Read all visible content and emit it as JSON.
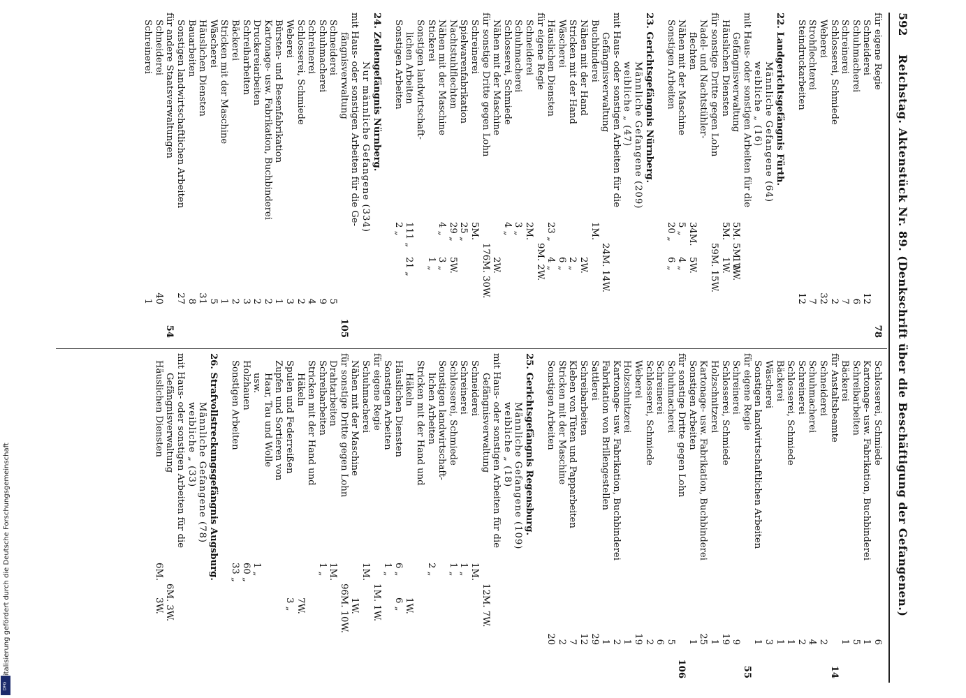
{
  "header": {
    "page_number": "592",
    "title": "Reichstag.   Aktenstück Nr. 89.   (Denkschrift über die Beschäftigung der Gefangenen.)"
  },
  "footer_note": "Digitalisierung gefördert durch die Deutsche Forschungsgemeinschaft",
  "left_column": [
    {
      "text": "für eigene Regie",
      "indent": 0,
      "n": "",
      "s": "78"
    },
    {
      "text": "Schneiderei",
      "indent": 1,
      "n": "12",
      "s": ""
    },
    {
      "text": "Schuhmacherei",
      "indent": 1,
      "n": "6",
      "s": ""
    },
    {
      "text": "Schreinerei",
      "indent": 1,
      "n": "7",
      "s": ""
    },
    {
      "text": "Schlosserei, Schmiede",
      "indent": 1,
      "n": "2",
      "s": ""
    },
    {
      "text": "Weberei",
      "indent": 1,
      "n": "32",
      "s": ""
    },
    {
      "text": "Strohflechterei",
      "indent": 1,
      "n": "7",
      "s": ""
    },
    {
      "text": "Steindruckarbeiten",
      "indent": 1,
      "n": "12",
      "s": ""
    },
    {
      "text": "",
      "indent": 0,
      "n": "",
      "s": ""
    },
    {
      "text": "22. Landgerichtsgefängnis Fürth.",
      "indent": 0,
      "sec": true
    },
    {
      "text": "Männliche Gefangene (64)",
      "indent": 3,
      "n": "",
      "s": ""
    },
    {
      "text": "weibliche     „     (16)",
      "indent": 3,
      "n": "",
      "s": ""
    },
    {
      "text": "mit Haus- oder sonstigen Arbeiten für die",
      "indent": 0,
      "n": "",
      "s": ""
    },
    {
      "text": "Gefängnisverwaltung",
      "indent": 2,
      "a": "5M.",
      "b": "1W.",
      "fm": "5M. 1W."
    },
    {
      "text": "Häuslichen Diensten",
      "indent": 1,
      "a": "5M.",
      "b": "1W.",
      "fm": ""
    },
    {
      "text": "für sonstige Dritte gegen Lohn",
      "indent": 0,
      "fm": "59M. 15W."
    },
    {
      "text": "Nadel- und Nachtstühler-",
      "indent": 1
    },
    {
      "text": "flechten",
      "indent": 2,
      "a": "34M.",
      "b": "5W."
    },
    {
      "text": "Nähen mit der Maschine",
      "indent": 1,
      "a": "5 „",
      "b": "4 „"
    },
    {
      "text": "Sonstigen Arbeiten",
      "indent": 1,
      "a": "20 „",
      "b": "6 „"
    },
    {
      "text": "",
      "indent": 0
    },
    {
      "text": "23. Gerichtsgefängnis Nürnberg.",
      "indent": 0,
      "sec": true
    },
    {
      "text": "Männliche Gefangene (209)",
      "indent": 3
    },
    {
      "text": "weibliche     „     (47)",
      "indent": 3
    },
    {
      "text": "mit Haus- oder sonstigen Arbeiten für die",
      "indent": 0
    },
    {
      "text": "Gefängnisverwaltung",
      "indent": 2,
      "fm": "24M. 14W."
    },
    {
      "text": "Buchbinderei",
      "indent": 1,
      "a": "1M.",
      "b": ""
    },
    {
      "text": "Nähen mit der Hand",
      "indent": 1,
      "a": "",
      "b": "2W."
    },
    {
      "text": "Stricken mit der Hand",
      "indent": 1,
      "a": "",
      "b": "2 „"
    },
    {
      "text": "Wäscherei",
      "indent": 1,
      "a": "",
      "b": "6 „"
    },
    {
      "text": "Häuslichen Diensten",
      "indent": 1,
      "a": "23 „",
      "b": "4 „"
    },
    {
      "text": "für eigene Regie",
      "indent": 0,
      "fm": "9M. 2W."
    },
    {
      "text": "Schneiderei",
      "indent": 1,
      "a": "2M.",
      "b": ""
    },
    {
      "text": "Schuhmacherei",
      "indent": 1,
      "a": "3 „",
      "b": ""
    },
    {
      "text": "Schlosserei, Schmiede",
      "indent": 1,
      "a": "4 „",
      "b": ""
    },
    {
      "text": "Nähen mit der Maschine",
      "indent": 1,
      "a": "",
      "b": "2W."
    },
    {
      "text": "für sonstige Dritte gegen Lohn",
      "indent": 0,
      "fm": "176M. 30W."
    },
    {
      "text": "Schreinerei",
      "indent": 1,
      "a": "5M.",
      "b": ""
    },
    {
      "text": "Spielwarenfabrikation",
      "indent": 1,
      "a": "25 „",
      "b": ""
    },
    {
      "text": "Nachtstuhlflechten",
      "indent": 1,
      "a": "29 „",
      "b": "5W."
    },
    {
      "text": "Nähen mit der Maschine",
      "indent": 1,
      "a": "4 „",
      "b": "3 „"
    },
    {
      "text": "Stickerei",
      "indent": 1,
      "a": "",
      "b": "1 „"
    },
    {
      "text": "Sonstigen landwirtschaft-",
      "indent": 1
    },
    {
      "text": "lichen Arbeiten",
      "indent": 2,
      "a": "111 „",
      "b": "21 „"
    },
    {
      "text": "Sonstigen Arbeiten",
      "indent": 1,
      "a": "2 „",
      "b": ""
    },
    {
      "text": "",
      "indent": 0
    },
    {
      "text": "24. Zellengefängnis Nürnberg.",
      "indent": 0,
      "sec": true
    },
    {
      "text": "Nur männliche Gefangene (334)",
      "indent": 3
    },
    {
      "text": "mit Haus- oder sonstigen Arbeiten für die Ge-",
      "indent": 0
    },
    {
      "text": "fängnisverwaltung",
      "indent": 2,
      "n": "",
      "s": "105"
    },
    {
      "text": "Schneiderei",
      "indent": 1,
      "n": "5"
    },
    {
      "text": "Schuhmacherei",
      "indent": 1,
      "n": "9"
    },
    {
      "text": "Schreinerei",
      "indent": 1,
      "n": "4"
    },
    {
      "text": "Schlosserei, Schmiede",
      "indent": 1,
      "n": "2"
    },
    {
      "text": "Weberei",
      "indent": 1,
      "n": "3"
    },
    {
      "text": "Bürsten- und Besenfabrikation",
      "indent": 1,
      "n": "1"
    },
    {
      "text": "Kartonage- usw. Fabrikation, Buchbinderei",
      "indent": 1,
      "n": "2"
    },
    {
      "text": "Druckereiarbeiten",
      "indent": 1,
      "n": "2"
    },
    {
      "text": "Schreibarbeiten",
      "indent": 1,
      "n": "3"
    },
    {
      "text": "Bäckerei",
      "indent": 1,
      "n": "2"
    },
    {
      "text": "Stricken mit der Maschine",
      "indent": 1,
      "n": "1"
    },
    {
      "text": "Wäscherei",
      "indent": 1,
      "n": "5"
    },
    {
      "text": "Häuslichen Diensten",
      "indent": 1,
      "n": "31"
    },
    {
      "text": "Bauarbeiten",
      "indent": 1,
      "n": "8"
    },
    {
      "text": "Sonstigen landwirtschaftlichen Arbeiten",
      "indent": 1,
      "n": "27"
    },
    {
      "text": "für andere Staatsverwaltungen",
      "indent": 0,
      "n": "",
      "s": "54"
    },
    {
      "text": "Schneiderei",
      "indent": 1,
      "n": "40"
    },
    {
      "text": "Schreinerei",
      "indent": 1,
      "n": "1"
    }
  ],
  "right_column": [
    {
      "text": "Schlosserei, Schmiede",
      "indent": 1,
      "n": "6"
    },
    {
      "text": "Kartonage- usw. Fabrikation, Buchbinderei",
      "indent": 1,
      "n": "1"
    },
    {
      "text": "Schreibarbeiten",
      "indent": 1,
      "n": "5"
    },
    {
      "text": "Bäckerei",
      "indent": 1,
      "n": "1"
    },
    {
      "text": "für Anstaltsbeamte",
      "indent": 0,
      "n": "",
      "s": "14"
    },
    {
      "text": "Schneiderei",
      "indent": 1,
      "n": "2"
    },
    {
      "text": "Schuhmacherei",
      "indent": 1,
      "n": "4"
    },
    {
      "text": "Schreinerei",
      "indent": 1,
      "n": "2"
    },
    {
      "text": "Schlosserei, Schmiede",
      "indent": 1,
      "n": "1"
    },
    {
      "text": "Bäckerei",
      "indent": 1,
      "n": "1"
    },
    {
      "text": "Wäscherei",
      "indent": 1,
      "n": "3"
    },
    {
      "text": "Sonstigen landwirtschaftlichen Arbeiten",
      "indent": 1,
      "n": "1"
    },
    {
      "text": "für eigene Regie",
      "indent": 0,
      "n": "",
      "s": "55"
    },
    {
      "text": "Schreinerei",
      "indent": 1,
      "n": "9"
    },
    {
      "text": "Schlosserei, Schmiede",
      "indent": 1,
      "n": "19"
    },
    {
      "text": "Holzschnitzerei",
      "indent": 1,
      "n": "1"
    },
    {
      "text": "Kartonage- usw. Fabrikation, Buchbinderei",
      "indent": 1,
      "n": "25"
    },
    {
      "text": "Sonstigen Arbeiten",
      "indent": 1,
      "n": "1"
    },
    {
      "text": "für sonstige Dritte gegen Lohn",
      "indent": 0,
      "n": "",
      "s": "106"
    },
    {
      "text": "Schuhmacherei",
      "indent": 1,
      "n": "5"
    },
    {
      "text": "Schreinerei",
      "indent": 1,
      "n": "6"
    },
    {
      "text": "Schlosserei, Schmiede",
      "indent": 1,
      "n": "2"
    },
    {
      "text": "Weberei",
      "indent": 1,
      "n": "19"
    },
    {
      "text": "Holzschnitzerei",
      "indent": 1,
      "n": "1"
    },
    {
      "text": "Kartonage- usw. Fabrikation, Buchbinderei",
      "indent": 1,
      "n": "2"
    },
    {
      "text": "Fabrikation von Brillengestellen",
      "indent": 1,
      "n": "1"
    },
    {
      "text": "Sattlerei",
      "indent": 1,
      "n": "29"
    },
    {
      "text": "Schreibarbeiten",
      "indent": 1,
      "n": "12"
    },
    {
      "text": "Kleben von Tüten und Papparbeiten",
      "indent": 1,
      "n": "7"
    },
    {
      "text": "Stricken mit der Maschine",
      "indent": 1,
      "n": "2"
    },
    {
      "text": "Sonstigen Arbeiten",
      "indent": 1,
      "n": "20"
    },
    {
      "text": "",
      "indent": 0
    },
    {
      "text": "25. Gerichtsgefängnis Regensburg.",
      "indent": 0,
      "sec": true
    },
    {
      "text": "Männliche Gefangene (109)",
      "indent": 3
    },
    {
      "text": "weibliche     „     (18)",
      "indent": 3
    },
    {
      "text": "mit Haus- oder sonstigen Arbeiten für die",
      "indent": 0
    },
    {
      "text": "Gefängnisverwaltung",
      "indent": 2,
      "fm": "12M. 7W."
    },
    {
      "text": "Schneiderei",
      "indent": 1,
      "a": "1M.",
      "b": ""
    },
    {
      "text": "Schreinerei",
      "indent": 1,
      "a": "1 „",
      "b": ""
    },
    {
      "text": "Schlosserei, Schmiede",
      "indent": 1,
      "a": "1 „",
      "b": ""
    },
    {
      "text": "Sonstigen landwirtschaft-",
      "indent": 1
    },
    {
      "text": "lichen Arbeiten",
      "indent": 2,
      "a": "2 „",
      "b": ""
    },
    {
      "text": "Stricken mit der Hand und",
      "indent": 1
    },
    {
      "text": "Häkeln",
      "indent": 2,
      "a": "",
      "b": "1W."
    },
    {
      "text": "Häuslichen Diensten",
      "indent": 1,
      "a": "6 „",
      "b": "6 „"
    },
    {
      "text": "Sonstigen Arbeiten",
      "indent": 1,
      "a": "1 „",
      "b": ""
    },
    {
      "text": "für eigene Regie",
      "indent": 0,
      "fm": "1M. 1W."
    },
    {
      "text": "Schuhmacherei",
      "indent": 1,
      "a": "1M.",
      "b": ""
    },
    {
      "text": "Nähen mit der Maschine",
      "indent": 1,
      "a": "",
      "b": "1W."
    },
    {
      "text": "für sonstige Dritte gegen Lohn",
      "indent": 0,
      "fm": "96M. 10W."
    },
    {
      "text": "Drahtarbeiten",
      "indent": 1,
      "a": "1M.",
      "b": ""
    },
    {
      "text": "Schreibarbeiten",
      "indent": 1,
      "a": "1 „",
      "b": ""
    },
    {
      "text": "Stricken mit der Hand und",
      "indent": 1
    },
    {
      "text": "Häkeln",
      "indent": 2,
      "a": "",
      "b": "7W."
    },
    {
      "text": "Spulen und Federreißen",
      "indent": 1,
      "a": "",
      "b": "3 „"
    },
    {
      "text": "Zupfen und Sortieren von",
      "indent": 1
    },
    {
      "text": "Haar, Tau und Wolle",
      "indent": 2
    },
    {
      "text": "usw.",
      "indent": 2,
      "a": "1 „",
      "b": ""
    },
    {
      "text": "Holzhauen",
      "indent": 1,
      "a": "60 „",
      "b": ""
    },
    {
      "text": "Sonstigen Arbeiten",
      "indent": 1,
      "a": "33 „",
      "b": ""
    },
    {
      "text": "",
      "indent": 0
    },
    {
      "text": "26. Strafvollstreckungsgefängnis Augsburg.",
      "indent": 0,
      "sec": true
    },
    {
      "text": "Männliche Gefangene (78)",
      "indent": 3
    },
    {
      "text": "weibliche     „     (33)",
      "indent": 3
    },
    {
      "text": "mit Haus- oder sonstigen Arbeiten für die",
      "indent": 0
    },
    {
      "text": "Gefängnisverwaltung",
      "indent": 2,
      "fm": "6M. 3W."
    },
    {
      "text": "Häuslichen Diensten",
      "indent": 1,
      "a": "6M.",
      "b": "3W."
    }
  ]
}
